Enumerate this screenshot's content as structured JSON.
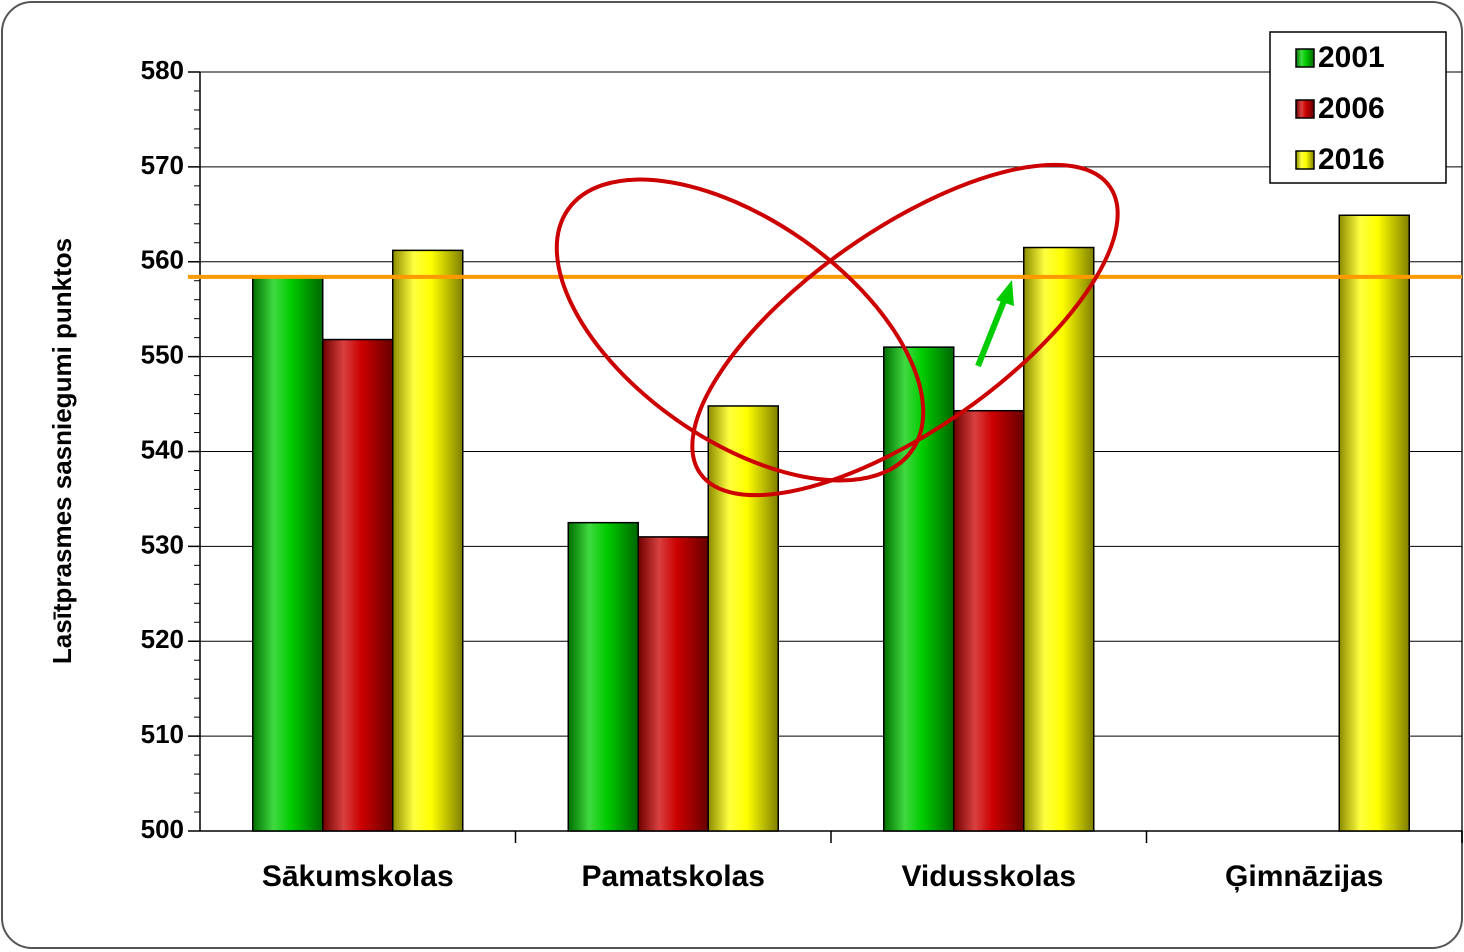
{
  "chart_data": {
    "type": "bar",
    "categories": [
      "Sākumskolas",
      "Pamatskolas",
      "Vidusskolas",
      "Ģimnāzijas"
    ],
    "series": [
      {
        "name": "2001",
        "color": "#00cc00",
        "values": [
          558.5,
          532.5,
          551,
          null
        ]
      },
      {
        "name": "2006",
        "color": "#cc0000",
        "values": [
          551.8,
          531,
          544.3,
          null
        ]
      },
      {
        "name": "2016",
        "color": "#ffff00",
        "values": [
          561.2,
          544.8,
          561.5,
          564.9
        ]
      }
    ],
    "y_label": "Lasītprasmes sasniegumi punktos",
    "ylim": [
      500,
      580
    ],
    "yticks": [
      500,
      510,
      520,
      530,
      540,
      550,
      560,
      570,
      580
    ],
    "grid": true,
    "legend": "top-right",
    "reference_line": {
      "value": 558.4,
      "color": "#ff9900"
    }
  }
}
